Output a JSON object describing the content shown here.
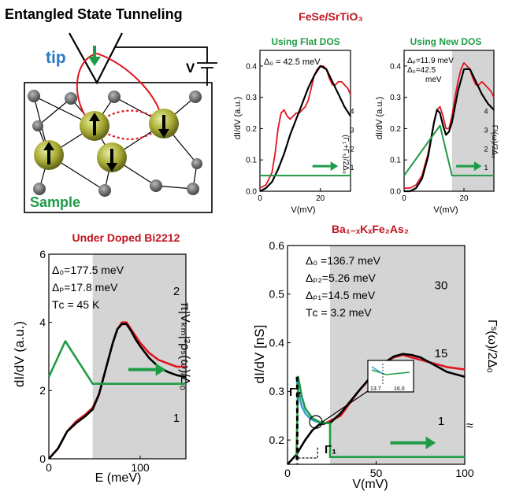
{
  "panel_a": {
    "title": "Entangled State Tunneling",
    "tip_label": "tip",
    "sample_label": "Sample",
    "voltage_label": "V"
  },
  "panel_b_heading": "FeSe/SrTiO₃",
  "chart_data": [
    {
      "id": "fese_flat",
      "type": "line",
      "title": "Using Flat DOS",
      "xlabel": "V(mV)",
      "ylabel": "dI/dV (a.u.)",
      "right_label": "(Γ₁+Γₛ)/2Δ₀",
      "xlim": [
        0,
        30
      ],
      "ylim": [
        0,
        0.45
      ],
      "xticks": [
        "0",
        "20"
      ],
      "yticks": [
        "0.0",
        "0.1",
        "0.2",
        "0.3",
        "0.4"
      ],
      "right_ticks": [
        "1",
        "2",
        "3",
        "4"
      ],
      "annotations": [
        "Δ₀ = 42.5 meV"
      ],
      "shaded_from": null,
      "series": [
        {
          "name": "experiment",
          "color": "#e0141e",
          "x": [
            0,
            2,
            4,
            5,
            6,
            7,
            8,
            9,
            10,
            11,
            12,
            13,
            14,
            15,
            16,
            17,
            18,
            19,
            20,
            21,
            22,
            23,
            24,
            25,
            26,
            27,
            28,
            29,
            30
          ],
          "y": [
            0.01,
            0.02,
            0.06,
            0.12,
            0.2,
            0.25,
            0.26,
            0.24,
            0.23,
            0.24,
            0.25,
            0.25,
            0.26,
            0.27,
            0.29,
            0.33,
            0.37,
            0.39,
            0.4,
            0.4,
            0.39,
            0.36,
            0.34,
            0.34,
            0.35,
            0.35,
            0.34,
            0.33,
            0.31
          ]
        },
        {
          "name": "fit",
          "color": "#000000",
          "x": [
            0,
            2,
            4,
            6,
            8,
            10,
            12,
            14,
            16,
            18,
            20,
            22,
            24,
            26,
            28,
            30
          ],
          "y": [
            0.0,
            0.01,
            0.03,
            0.07,
            0.12,
            0.18,
            0.23,
            0.28,
            0.33,
            0.37,
            0.4,
            0.39,
            0.35,
            0.31,
            0.27,
            0.24
          ]
        },
        {
          "name": "scattering rate",
          "color": "#1e9c45",
          "x": [
            0,
            30
          ],
          "y": [
            0.05,
            0.05
          ]
        }
      ]
    },
    {
      "id": "fese_new",
      "type": "line",
      "title": "Using New DOS",
      "xlabel": "V(mV)",
      "ylabel": "dI/dV (a.u.)",
      "right_label": "Γˢ(ω)/2Δ₀",
      "xlim": [
        0,
        30
      ],
      "ylim": [
        0,
        0.45
      ],
      "xticks": [
        "0",
        "20"
      ],
      "yticks": [
        "0.0",
        "0.1",
        "0.2",
        "0.3",
        "0.4"
      ],
      "right_ticks": [
        "1",
        "2",
        "3",
        "4"
      ],
      "annotations": [
        "Δₚ=11.9 meV",
        "Δ₀=42.5",
        "meV"
      ],
      "shaded_from": 16,
      "series": [
        {
          "name": "experiment",
          "color": "#e0141e",
          "x": [
            0,
            2,
            4,
            6,
            8,
            10,
            11,
            12,
            13,
            14,
            15,
            16,
            17,
            18,
            19,
            20,
            21,
            22,
            23,
            24,
            25,
            26,
            27,
            28,
            29,
            30
          ],
          "y": [
            0.01,
            0.01,
            0.02,
            0.05,
            0.12,
            0.22,
            0.26,
            0.27,
            0.24,
            0.2,
            0.2,
            0.24,
            0.3,
            0.35,
            0.39,
            0.41,
            0.4,
            0.39,
            0.36,
            0.34,
            0.34,
            0.35,
            0.34,
            0.33,
            0.32,
            0.3
          ]
        },
        {
          "name": "fit",
          "color": "#000000",
          "x": [
            0,
            2,
            4,
            6,
            8,
            10,
            11,
            12,
            13,
            14,
            15,
            16,
            18,
            20,
            22,
            24,
            26,
            28,
            30
          ],
          "y": [
            0.0,
            0.0,
            0.01,
            0.04,
            0.11,
            0.22,
            0.26,
            0.25,
            0.21,
            0.18,
            0.19,
            0.22,
            0.32,
            0.39,
            0.39,
            0.35,
            0.31,
            0.28,
            0.26
          ]
        },
        {
          "name": "scattering rate",
          "color": "#1e9c45",
          "x": [
            0,
            12,
            16,
            16,
            30
          ],
          "y": [
            0.05,
            0.21,
            0.05,
            0.05,
            0.05
          ]
        }
      ]
    },
    {
      "id": "bi2212",
      "type": "line",
      "title": "Under Doped Bi2212",
      "xlabel": "E (meV)",
      "ylabel": "dI/dV (a.u.)",
      "right_label": "π|Vₖₘ|²ρₛ(ω)/Δ₀",
      "xlim": [
        0,
        150
      ],
      "ylim": [
        0,
        6
      ],
      "xticks": [
        "0",
        "100"
      ],
      "yticks": [
        "0",
        "2",
        "4",
        "6"
      ],
      "right_ticks": [
        "1",
        "2"
      ],
      "annotations": [
        "Δ₀=177.5 meV",
        "Δₚ=17.8 meV",
        "Tᴄ = 45 K"
      ],
      "shaded_from": 48,
      "series": [
        {
          "name": "experiment",
          "color": "#e0141e",
          "x": [
            0,
            10,
            20,
            30,
            40,
            48,
            55,
            60,
            65,
            70,
            75,
            80,
            85,
            90,
            95,
            100,
            110,
            120,
            130,
            140,
            150
          ],
          "y": [
            0.0,
            0.3,
            0.8,
            1.1,
            1.3,
            1.5,
            1.9,
            2.4,
            2.9,
            3.4,
            3.8,
            4.0,
            4.0,
            3.8,
            3.6,
            3.4,
            3.1,
            2.9,
            2.8,
            2.7,
            2.7
          ]
        },
        {
          "name": "fit",
          "color": "#000000",
          "x": [
            0,
            10,
            20,
            30,
            40,
            48,
            55,
            60,
            65,
            70,
            75,
            80,
            85,
            90,
            95,
            100,
            110,
            120,
            130,
            140,
            150
          ],
          "y": [
            0.0,
            0.3,
            0.8,
            1.05,
            1.25,
            1.45,
            1.9,
            2.4,
            2.9,
            3.4,
            3.8,
            3.95,
            3.95,
            3.75,
            3.5,
            3.3,
            2.95,
            2.7,
            2.55,
            2.45,
            2.4
          ]
        },
        {
          "name": "scattering rate",
          "color": "#1e9c45",
          "x": [
            0,
            18,
            48,
            48,
            150
          ],
          "y": [
            2.4,
            3.45,
            2.2,
            2.2,
            2.2
          ]
        }
      ]
    },
    {
      "id": "bakfeas",
      "type": "line",
      "title": "Ba₁₋ₓKₓFe₂As₂",
      "xlabel": "V(mV)",
      "ylabel": "dI/dV [nS]",
      "right_label": "Γˢ(ω)/2Δ₀",
      "xlim": [
        0,
        100
      ],
      "ylim": [
        0.15,
        0.6
      ],
      "xticks": [
        "0",
        "50",
        "100"
      ],
      "yticks": [
        "0.2",
        "0.3",
        "0.4",
        "0.5",
        "0.6"
      ],
      "right_ticks": [
        "1",
        "15",
        "30"
      ],
      "annotations": [
        "Δ₀ =136.7 meV",
        "Δₚ₂=5.26 meV",
        "Δₚ₁=14.5 meV",
        "Tᴄ = 3.2 meV",
        "Γ₁",
        "Γ₂",
        "≈"
      ],
      "inset_ticks": [
        "13.7",
        "16.0"
      ],
      "shaded_from": 24,
      "series": [
        {
          "name": "experiment",
          "color": "#e0141e",
          "x": [
            20,
            30,
            40,
            50,
            55,
            60,
            65,
            70,
            80,
            90,
            100
          ],
          "y": [
            0.232,
            0.25,
            0.3,
            0.34,
            0.36,
            0.37,
            0.375,
            0.37,
            0.36,
            0.35,
            0.345
          ]
        },
        {
          "name": "fit",
          "color": "#000000",
          "x": [
            0,
            5,
            10,
            14,
            18,
            22,
            24,
            30,
            40,
            50,
            55,
            60,
            65,
            70,
            75,
            80,
            90,
            100
          ],
          "y": [
            0.15,
            0.17,
            0.2,
            0.22,
            0.232,
            0.235,
            0.235,
            0.255,
            0.3,
            0.343,
            0.36,
            0.372,
            0.377,
            0.375,
            0.37,
            0.36,
            0.34,
            0.33
          ]
        },
        {
          "name": "Gamma_s fit",
          "color": "#3a9fd8",
          "x": [
            5,
            6,
            8,
            10,
            13,
            16,
            20
          ],
          "y": [
            0.33,
            0.3,
            0.27,
            0.255,
            0.243,
            0.238,
            0.235
          ]
        },
        {
          "name": "scattering rate",
          "color": "#1e9c45",
          "x": [
            5,
            6,
            8,
            10,
            14,
            18,
            24,
            24,
            100
          ],
          "y": [
            0.16,
            0.33,
            0.29,
            0.265,
            0.245,
            0.237,
            0.234,
            0.165,
            0.165
          ]
        }
      ]
    }
  ]
}
